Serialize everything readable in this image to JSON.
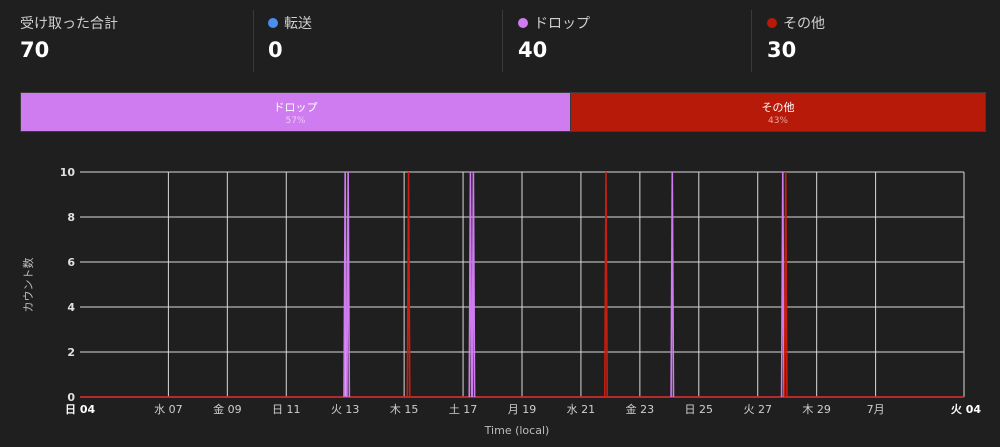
{
  "summary": {
    "total": {
      "label": "受け取った合計",
      "value": "70"
    },
    "forwarded": {
      "label": "転送",
      "value": "0",
      "color": "#4a8ef0"
    },
    "dropped": {
      "label": "ドロップ",
      "value": "40",
      "color": "#d07cf0"
    },
    "other": {
      "label": "その他",
      "value": "30",
      "color": "#b81a0a"
    }
  },
  "share_bar": {
    "segments": [
      {
        "name": "ドロップ",
        "percent": "57%",
        "color": "#cf7cf0",
        "fraction": 0.57
      },
      {
        "name": "その他",
        "percent": "43%",
        "color": "#b81a0a",
        "fraction": 0.43
      }
    ]
  },
  "chart_data": {
    "type": "line",
    "title": "",
    "xlabel": "Time (local)",
    "ylabel": "カウント数",
    "ylim": [
      0,
      10
    ],
    "yticks": [
      "0",
      "2",
      "4",
      "6",
      "8",
      "10"
    ],
    "xlim_days": [
      0,
      30
    ],
    "xticks": [
      {
        "label": "日 04",
        "day": 0,
        "bold": true
      },
      {
        "label": "水 07",
        "day": 3
      },
      {
        "label": "金 09",
        "day": 5
      },
      {
        "label": "日 11",
        "day": 7
      },
      {
        "label": "火 13",
        "day": 9
      },
      {
        "label": "木 15",
        "day": 11
      },
      {
        "label": "土 17",
        "day": 13
      },
      {
        "label": "月 19",
        "day": 15
      },
      {
        "label": "水 21",
        "day": 17
      },
      {
        "label": "金 23",
        "day": 19
      },
      {
        "label": "日 25",
        "day": 21
      },
      {
        "label": "火 27",
        "day": 23
      },
      {
        "label": "木 29",
        "day": 25
      },
      {
        "label": "7月",
        "day": 27
      },
      {
        "label": "火 04",
        "day": 30,
        "bold": true
      }
    ],
    "grid": true,
    "series": [
      {
        "name": "ドロップ",
        "color": "#d07cf0",
        "spikes": [
          {
            "day": 9.0,
            "value": 10
          },
          {
            "day": 9.1,
            "value": 10
          },
          {
            "day": 13.25,
            "value": 10
          },
          {
            "day": 13.35,
            "value": 10
          },
          {
            "day": 20.1,
            "value": 10
          },
          {
            "day": 23.85,
            "value": 10
          }
        ]
      },
      {
        "name": "その他",
        "color": "#c81e10",
        "spikes": [
          {
            "day": 11.15,
            "value": 10
          },
          {
            "day": 17.85,
            "value": 10
          },
          {
            "day": 23.95,
            "value": 10
          }
        ]
      }
    ]
  }
}
